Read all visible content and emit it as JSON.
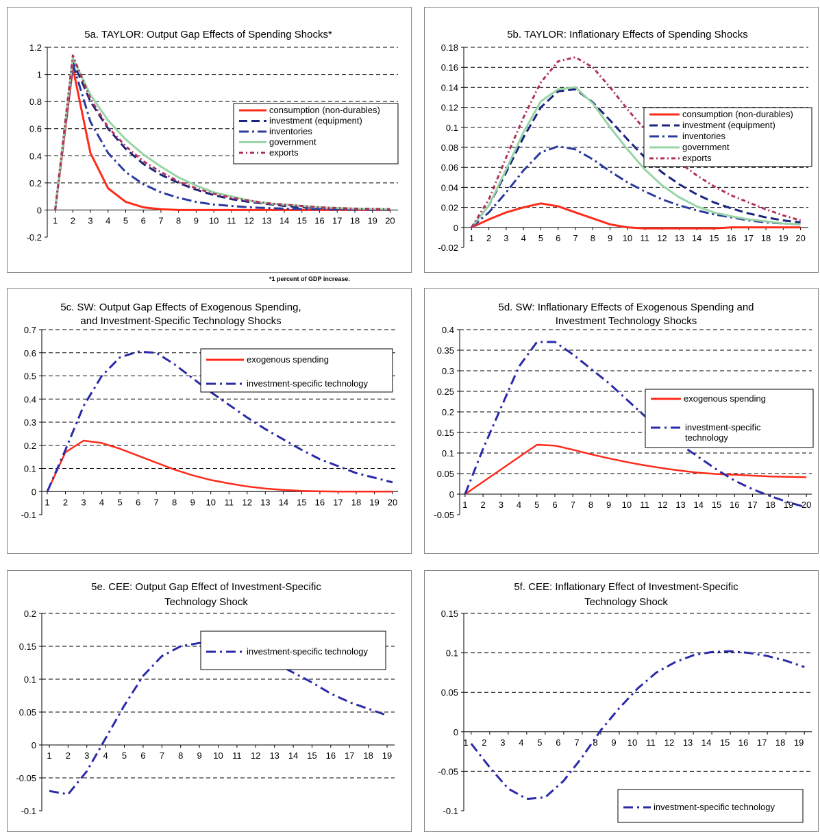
{
  "footnote": "*1 percent of GDP increase.",
  "styles": {
    "consumption": {
      "color": "#ff2a1a",
      "dash": "",
      "width": 3
    },
    "investment": {
      "color": "#1a237e",
      "dash": "12,6",
      "width": 3
    },
    "inventories": {
      "color": "#2a3a9e",
      "dash": "14,5,3,5",
      "width": 3
    },
    "government": {
      "color": "#98d4a6",
      "dash": "",
      "width": 3
    },
    "exports": {
      "color": "#b0305a",
      "dash": "6,4,2,4",
      "width": 3
    },
    "exog": {
      "color": "#ff2a1a",
      "dash": "",
      "width": 2.5
    },
    "ist": {
      "color": "#2a2aa8",
      "dash": "14,6,3,6",
      "width": 3
    }
  },
  "chart_data": [
    {
      "type": "line",
      "title": "5a. TAYLOR: Output Gap Effects of Spending Shocks*",
      "x": [
        1,
        2,
        3,
        4,
        5,
        6,
        7,
        8,
        9,
        10,
        11,
        12,
        13,
        14,
        15,
        16,
        17,
        18,
        19,
        20
      ],
      "ylim": [
        -0.2,
        1.2
      ],
      "yticks": [
        -0.2,
        0,
        0.2,
        0.4,
        0.6,
        0.8,
        1,
        1.2
      ],
      "ytick_labels": [
        "-0.2",
        "0",
        "0.2",
        "0.4",
        "0.6",
        "0.8",
        "1",
        "1.2"
      ],
      "series": [
        {
          "name": "consumption (non-durables)",
          "style": "consumption",
          "values": [
            0,
            1.05,
            0.42,
            0.16,
            0.06,
            0.02,
            0.005,
            0,
            0,
            0,
            0,
            0,
            0,
            0,
            0,
            0,
            0,
            0,
            0,
            0
          ]
        },
        {
          "name": "investment (equipment)",
          "style": "investment",
          "values": [
            0,
            1.1,
            0.8,
            0.6,
            0.45,
            0.34,
            0.26,
            0.2,
            0.15,
            0.11,
            0.08,
            0.06,
            0.045,
            0.03,
            0.02,
            0.015,
            0.01,
            0.008,
            0.005,
            0.004
          ]
        },
        {
          "name": "inventories",
          "style": "inventories",
          "values": [
            0,
            1.08,
            0.65,
            0.42,
            0.28,
            0.19,
            0.13,
            0.09,
            0.06,
            0.04,
            0.03,
            0.02,
            0.015,
            0.01,
            0.007,
            0.005,
            0.003,
            0.002,
            0.001,
            0.001
          ]
        },
        {
          "name": "government",
          "style": "government",
          "values": [
            0,
            1.12,
            0.85,
            0.66,
            0.52,
            0.41,
            0.32,
            0.24,
            0.18,
            0.13,
            0.1,
            0.07,
            0.05,
            0.04,
            0.03,
            0.02,
            0.015,
            0.01,
            0.008,
            0.006
          ]
        },
        {
          "name": "exports",
          "style": "exports",
          "values": [
            0,
            1.14,
            0.82,
            0.61,
            0.47,
            0.36,
            0.28,
            0.21,
            0.16,
            0.12,
            0.09,
            0.07,
            0.05,
            0.04,
            0.03,
            0.02,
            0.015,
            0.01,
            0.008,
            0.006
          ]
        }
      ]
    },
    {
      "type": "line",
      "title": "5b. TAYLOR: Inflationary Effects of Spending Shocks",
      "x": [
        1,
        2,
        3,
        4,
        5,
        6,
        7,
        8,
        9,
        10,
        11,
        12,
        13,
        14,
        15,
        16,
        17,
        18,
        19,
        20
      ],
      "ylim": [
        -0.02,
        0.18
      ],
      "yticks": [
        -0.02,
        0,
        0.02,
        0.04,
        0.06,
        0.08,
        0.1,
        0.12,
        0.14,
        0.16,
        0.18
      ],
      "ytick_labels": [
        "-0.02",
        "0",
        "0.02",
        "0.04",
        "0.06",
        "0.08",
        "0.1",
        "0.12",
        "0.14",
        "0.16",
        "0.18"
      ],
      "series": [
        {
          "name": "consumption (non-durables)",
          "style": "consumption",
          "values": [
            0,
            0.008,
            0.015,
            0.02,
            0.024,
            0.021,
            0.015,
            0.009,
            0.003,
            0,
            -0.001,
            -0.001,
            -0.001,
            -0.001,
            -0.001,
            0,
            0,
            0,
            0,
            0
          ]
        },
        {
          "name": "investment (equipment)",
          "style": "investment",
          "values": [
            0,
            0.022,
            0.055,
            0.09,
            0.12,
            0.136,
            0.138,
            0.125,
            0.107,
            0.088,
            0.07,
            0.055,
            0.043,
            0.033,
            0.025,
            0.019,
            0.014,
            0.01,
            0.007,
            0.005
          ]
        },
        {
          "name": "inventories",
          "style": "inventories",
          "values": [
            0,
            0.015,
            0.035,
            0.057,
            0.075,
            0.081,
            0.078,
            0.068,
            0.056,
            0.045,
            0.036,
            0.028,
            0.022,
            0.017,
            0.013,
            0.01,
            0.007,
            0.005,
            0.004,
            0.003
          ]
        },
        {
          "name": "government",
          "style": "government",
          "values": [
            0,
            0.022,
            0.058,
            0.095,
            0.126,
            0.138,
            0.14,
            0.124,
            0.1,
            0.078,
            0.058,
            0.042,
            0.03,
            0.021,
            0.015,
            0.011,
            0.008,
            0.006,
            0.004,
            0.003
          ]
        },
        {
          "name": "exports",
          "style": "exports",
          "values": [
            0,
            0.028,
            0.07,
            0.11,
            0.145,
            0.166,
            0.17,
            0.16,
            0.14,
            0.118,
            0.098,
            0.08,
            0.065,
            0.052,
            0.041,
            0.032,
            0.025,
            0.018,
            0.012,
            0.007
          ]
        }
      ]
    },
    {
      "type": "line",
      "title": "5c. SW: Output Gap Effects of Exogenous Spending, and Investment-Specific Technology Shocks",
      "x": [
        1,
        2,
        3,
        4,
        5,
        6,
        7,
        8,
        9,
        10,
        11,
        12,
        13,
        14,
        15,
        16,
        17,
        18,
        19,
        20
      ],
      "ylim": [
        -0.1,
        0.7
      ],
      "yticks": [
        -0.1,
        0,
        0.1,
        0.2,
        0.3,
        0.4,
        0.5,
        0.6,
        0.7
      ],
      "ytick_labels": [
        "-0.1",
        "0",
        "0.1",
        "0.2",
        "0.3",
        "0.4",
        "0.5",
        "0.6",
        "0.7"
      ],
      "series": [
        {
          "name": "exogenous spending",
          "style": "exog",
          "values": [
            0,
            0.17,
            0.22,
            0.21,
            0.185,
            0.155,
            0.125,
            0.095,
            0.07,
            0.05,
            0.035,
            0.022,
            0.013,
            0.007,
            0.003,
            0.001,
            0,
            0,
            0,
            0
          ]
        },
        {
          "name": "investment-specific technology",
          "style": "ist",
          "values": [
            0,
            0.18,
            0.37,
            0.5,
            0.58,
            0.605,
            0.6,
            0.55,
            0.49,
            0.43,
            0.375,
            0.32,
            0.27,
            0.225,
            0.18,
            0.14,
            0.11,
            0.08,
            0.06,
            0.04
          ]
        }
      ]
    },
    {
      "type": "line",
      "title": "5d. SW: Inflationary Effects of Exogenous Spending and Investment Technology Shocks",
      "x": [
        1,
        2,
        3,
        4,
        5,
        6,
        7,
        8,
        9,
        10,
        11,
        12,
        13,
        14,
        15,
        16,
        17,
        18,
        19,
        20
      ],
      "ylim": [
        -0.05,
        0.4
      ],
      "yticks": [
        -0.05,
        0,
        0.05,
        0.1,
        0.15,
        0.2,
        0.25,
        0.3,
        0.35,
        0.4
      ],
      "ytick_labels": [
        "-0.05",
        "0",
        "0.05",
        "0.1",
        "0.15",
        "0.2",
        "0.25",
        "0.3",
        "0.35",
        "0.4"
      ],
      "series": [
        {
          "name": "exogenous spending",
          "style": "exog",
          "values": [
            0,
            0.03,
            0.06,
            0.09,
            0.12,
            0.118,
            0.108,
            0.097,
            0.087,
            0.078,
            0.07,
            0.063,
            0.057,
            0.052,
            0.049,
            0.047,
            0.045,
            0.043,
            0.042,
            0.041
          ]
        },
        {
          "name": "investment-specific technology",
          "style": "ist",
          "values": [
            0,
            0.11,
            0.21,
            0.31,
            0.37,
            0.37,
            0.34,
            0.305,
            0.27,
            0.23,
            0.19,
            0.155,
            0.12,
            0.09,
            0.06,
            0.033,
            0.012,
            -0.005,
            -0.02,
            -0.032
          ]
        }
      ]
    },
    {
      "type": "line",
      "title": "5e. CEE: Output Gap Effect of Investment-Specific Technology Shock",
      "x": [
        1,
        2,
        3,
        4,
        5,
        6,
        7,
        8,
        9,
        10,
        11,
        12,
        13,
        14,
        15,
        16,
        17,
        18,
        19
      ],
      "ylim": [
        -0.1,
        0.2
      ],
      "yticks": [
        -0.1,
        -0.05,
        0,
        0.05,
        0.1,
        0.15,
        0.2
      ],
      "ytick_labels": [
        "-0.1",
        "-0.05",
        "0",
        "0.05",
        "0.1",
        "0.15",
        "0.2"
      ],
      "series": [
        {
          "name": "investment-specific technology",
          "style": "ist",
          "values": [
            -0.07,
            -0.075,
            -0.04,
            0.01,
            0.06,
            0.105,
            0.135,
            0.15,
            0.155,
            0.153,
            0.145,
            0.137,
            0.125,
            0.11,
            0.095,
            0.078,
            0.065,
            0.055,
            0.045
          ]
        }
      ]
    },
    {
      "type": "line",
      "title": "5f. CEE: Inflationary Effect of Investment-Specific Technology Shock",
      "x": [
        1,
        2,
        3,
        4,
        5,
        6,
        7,
        8,
        9,
        10,
        11,
        12,
        13,
        14,
        15,
        16,
        17,
        18,
        19
      ],
      "ylim": [
        -0.1,
        0.15
      ],
      "yticks": [
        -0.1,
        -0.05,
        0,
        0.05,
        0.1,
        0.15
      ],
      "ytick_labels": [
        "-0.1",
        "-0.05",
        "0",
        "0.05",
        "0.1",
        "0.15"
      ],
      "series": [
        {
          "name": "investment-specific technology",
          "style": "ist",
          "values": [
            -0.015,
            -0.045,
            -0.072,
            -0.085,
            -0.083,
            -0.062,
            -0.032,
            0.002,
            0.03,
            0.055,
            0.075,
            0.088,
            0.097,
            0.101,
            0.102,
            0.1,
            0.096,
            0.09,
            0.082
          ]
        }
      ]
    }
  ]
}
